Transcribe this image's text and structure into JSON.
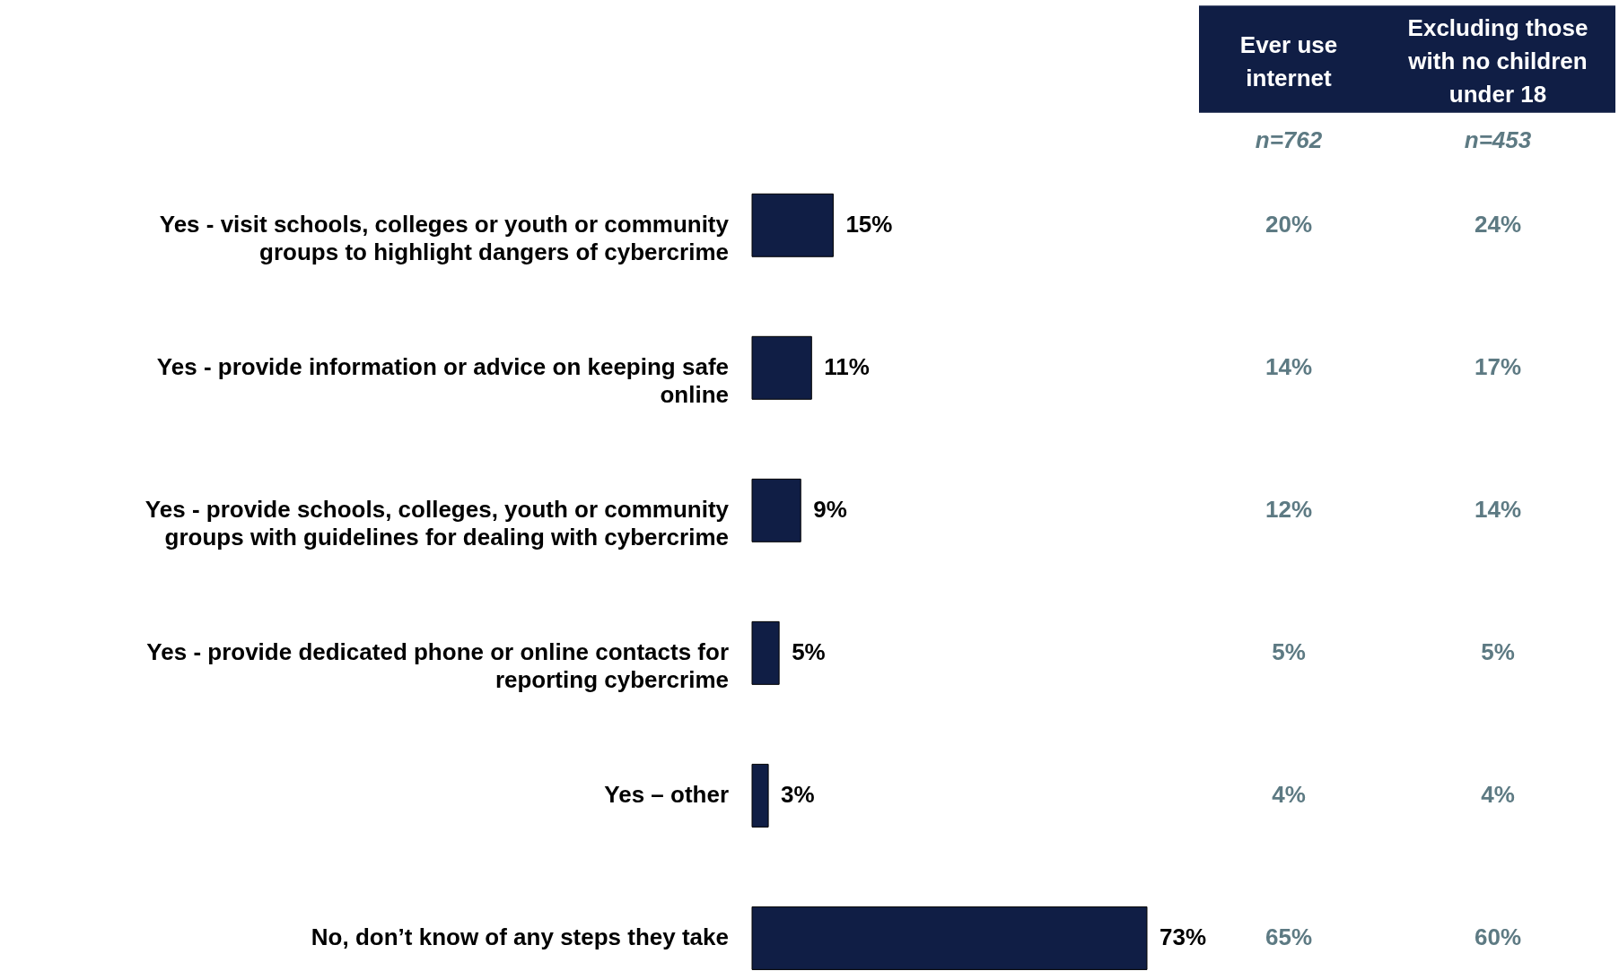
{
  "chart_data": [
    {
      "type": "bar",
      "orientation": "horizontal",
      "categories": [
        "Yes - visit schools, colleges or youth or community groups to highlight dangers of cybercrime",
        "Yes - provide information or advice on keeping safe online",
        "Yes - provide schools, colleges, youth or community groups with guidelines for dealing with cybercrime",
        "Yes - provide dedicated phone or online contacts for reporting cybercrime",
        "Yes – other",
        "No, don’t know of any steps they take"
      ],
      "values": [
        15,
        11,
        9,
        5,
        3,
        73
      ],
      "color": "#101e45",
      "value_labels": [
        "15%",
        "11%",
        "9%",
        "5%",
        "3%",
        "73%"
      ]
    },
    {
      "type": "other",
      "categories": [
        "Ever use internet",
        "Excluding those with no children under 18"
      ],
      "annotations": [
        "n=762",
        "n=453",
        "20%",
        "24%",
        "14%",
        "17%",
        "12%",
        "14%",
        "5%",
        "5%",
        "4%",
        "4%",
        "65%",
        "60%"
      ]
    }
  ]
}
